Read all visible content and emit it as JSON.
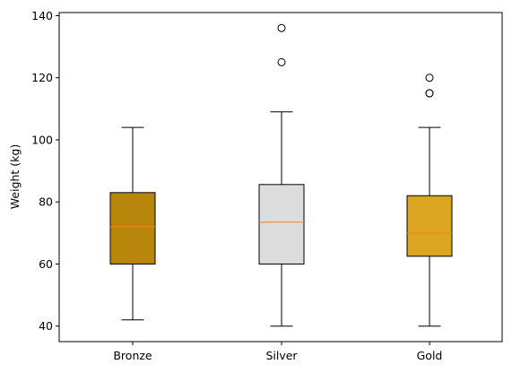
{
  "chart_data": {
    "type": "box",
    "title": "",
    "xlabel": "",
    "ylabel": "Weight (kg)",
    "ylim": [
      35,
      141
    ],
    "yticks": [
      40,
      60,
      80,
      100,
      120,
      140
    ],
    "grid": false,
    "categories": [
      "Bronze",
      "Silver",
      "Gold"
    ],
    "boxes": [
      {
        "category": "Bronze",
        "whisker_low": 42,
        "q1": 60,
        "median": 72,
        "q3": 83,
        "whisker_high": 104,
        "outliers": [],
        "color": "#b8860b"
      },
      {
        "category": "Silver",
        "whisker_low": 40,
        "q1": 60,
        "median": 73.5,
        "q3": 85.6,
        "whisker_high": 109,
        "outliers": [
          125,
          136
        ],
        "color": "#dcdcdc"
      },
      {
        "category": "Gold",
        "whisker_low": 40,
        "q1": 62.5,
        "median": 70,
        "q3": 82,
        "whisker_high": 104,
        "outliers": [
          115,
          115,
          120
        ],
        "color": "#daa520"
      }
    ],
    "median_color": "#ff7f0e"
  }
}
